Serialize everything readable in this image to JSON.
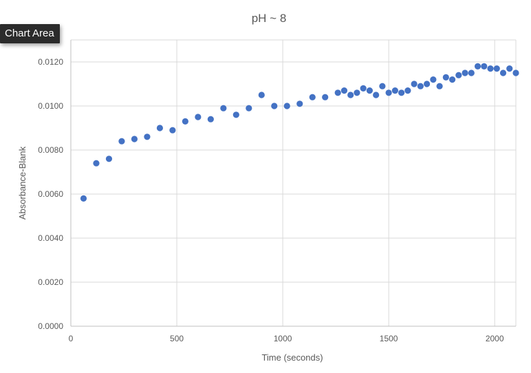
{
  "tooltip": {
    "label": "Chart Area"
  },
  "chart_data": {
    "type": "scatter",
    "title": "pH ~ 8",
    "xlabel": "Time (seconds)",
    "ylabel": "Absorbance-Blank",
    "xlim": [
      0,
      2100
    ],
    "ylim": [
      0,
      0.013
    ],
    "xticks": [
      0,
      500,
      1000,
      1500,
      2000
    ],
    "xtick_labels": [
      "0",
      "500",
      "1000",
      "1500",
      "2000"
    ],
    "yticks": [
      0,
      0.002,
      0.004,
      0.006,
      0.008,
      0.01,
      0.012
    ],
    "ytick_labels": [
      "0.0000",
      "0.0020",
      "0.0040",
      "0.0060",
      "0.0080",
      "0.0100",
      "0.0120"
    ],
    "grid": true,
    "legend": "none",
    "marker_color": "#4472c4",
    "series": [
      {
        "x": [
          60,
          120,
          180,
          240,
          300,
          360,
          420,
          480,
          540,
          600,
          660,
          720,
          780,
          840,
          900,
          960,
          1020,
          1080,
          1140,
          1200,
          1260,
          1290,
          1320,
          1350,
          1380,
          1410,
          1440,
          1470,
          1500,
          1530,
          1560,
          1590,
          1620,
          1650,
          1680,
          1710,
          1740,
          1770,
          1800,
          1830,
          1860,
          1890,
          1920,
          1950,
          1980,
          2010,
          2040,
          2070,
          2100
        ],
        "y": [
          0.0058,
          0.0074,
          0.0076,
          0.0084,
          0.0085,
          0.0086,
          0.009,
          0.0089,
          0.0093,
          0.0095,
          0.0094,
          0.0099,
          0.0096,
          0.0099,
          0.0105,
          0.01,
          0.01,
          0.0101,
          0.0104,
          0.0104,
          0.0106,
          0.0107,
          0.0105,
          0.0106,
          0.0108,
          0.0107,
          0.0105,
          0.0109,
          0.0106,
          0.0107,
          0.0106,
          0.0107,
          0.011,
          0.0109,
          0.011,
          0.0112,
          0.0109,
          0.0113,
          0.0112,
          0.0114,
          0.0115,
          0.0115,
          0.0118,
          0.0118,
          0.0117,
          0.0117,
          0.0115,
          0.0117,
          0.0115
        ]
      }
    ]
  }
}
